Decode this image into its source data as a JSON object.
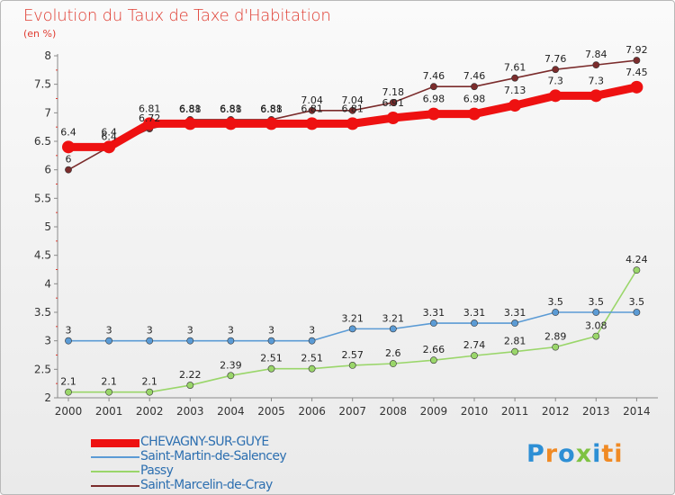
{
  "title": "Evolution du Taux de Taxe d'Habitation",
  "unit_label": "(en %)",
  "brand": "Proxiti",
  "brand_letters": [
    "P",
    "r",
    "o",
    "x",
    "i",
    "ti"
  ],
  "chart_data": {
    "type": "line",
    "title": "Evolution du Taux de Taxe d'Habitation",
    "ylabel": "(en %)",
    "ylim": [
      2,
      8
    ],
    "yticks": [
      2,
      2.5,
      3,
      3.5,
      4,
      4.5,
      5,
      5.5,
      6,
      6.5,
      7,
      7.5,
      8
    ],
    "ytick_labels": [
      "2",
      "2.5",
      "3",
      "3.5",
      "4",
      "4.5",
      "5",
      "5.5",
      "6",
      "6.5",
      "7",
      "7.5",
      "8"
    ],
    "x": [
      "2000",
      "2001",
      "2002",
      "2003",
      "2004",
      "2005",
      "2006",
      "2007",
      "2008",
      "2009",
      "2010",
      "2011",
      "2012",
      "2013",
      "2014"
    ],
    "legend_position": "bottom-left",
    "grid": false,
    "series": [
      {
        "name": "CHEVAGNY-SUR-GUYE",
        "color": "#ee1111",
        "values": [
          6.4,
          6.4,
          6.81,
          6.81,
          6.81,
          6.81,
          6.81,
          6.81,
          6.91,
          6.98,
          6.98,
          7.13,
          7.3,
          7.3,
          7.45
        ],
        "labels": [
          "6.4",
          "6.4",
          "6.81",
          "6.81",
          "6.81",
          "6.81",
          "6.81",
          "6.81",
          "6.91",
          "6.98",
          "6.98",
          "7.13",
          "7.3",
          "7.3",
          "7.45"
        ]
      },
      {
        "name": "Saint-Martin-de-Salencey",
        "color": "#5b9bd5",
        "values": [
          3,
          3,
          3,
          3,
          3,
          3,
          3,
          3.21,
          3.21,
          3.31,
          3.31,
          3.31,
          3.5,
          3.5,
          3.5
        ],
        "labels": [
          "3",
          "3",
          "3",
          "3",
          "3",
          "3",
          "3",
          "3.21",
          "3.21",
          "3.31",
          "3.31",
          "3.31",
          "3.5",
          "3.5",
          "3.5"
        ]
      },
      {
        "name": "Passy",
        "color": "#9ad66a",
        "values": [
          2.1,
          2.1,
          2.1,
          2.22,
          2.39,
          2.51,
          2.51,
          2.57,
          2.6,
          2.66,
          2.74,
          2.81,
          2.89,
          3.08,
          4.24
        ],
        "labels": [
          "2.1",
          "2.1",
          "2.1",
          "2.22",
          "2.39",
          "2.51",
          "2.51",
          "2.57",
          "2.6",
          "2.66",
          "2.74",
          "2.81",
          "2.89",
          "3.08",
          "4.24"
        ]
      },
      {
        "name": "Saint-Marcelin-de-Cray",
        "color": "#7b2c2c",
        "values": [
          6,
          6.4,
          6.72,
          6.88,
          6.88,
          6.88,
          7.04,
          7.04,
          7.18,
          7.46,
          7.46,
          7.61,
          7.76,
          7.84,
          7.92
        ],
        "labels": [
          "6",
          "6.4",
          "6.72",
          "6.88",
          "6.88",
          "6.88",
          "7.04",
          "7.04",
          "7.18",
          "7.46",
          "7.46",
          "7.61",
          "7.76",
          "7.84",
          "7.92"
        ]
      }
    ]
  }
}
